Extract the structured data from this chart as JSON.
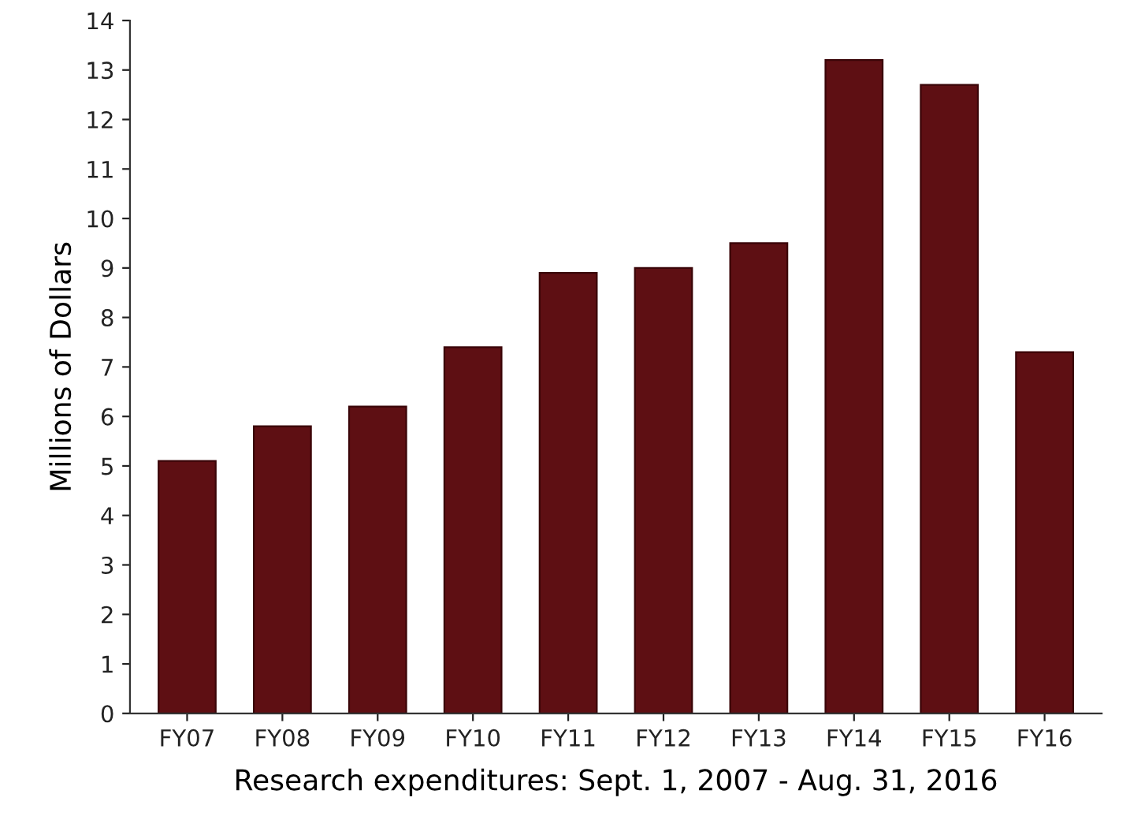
{
  "chart_data": {
    "type": "bar",
    "ylabel": "Millions of Dollars",
    "xlabel": "Research expenditures: Sept. 1, 2007 - Aug. 31, 2016",
    "categories": [
      "FY07",
      "FY08",
      "FY09",
      "FY10",
      "FY11",
      "FY12",
      "FY13",
      "FY14",
      "FY15",
      "FY16"
    ],
    "values": [
      5.1,
      5.8,
      6.2,
      7.4,
      8.9,
      9.0,
      9.5,
      13.2,
      12.7,
      7.3
    ],
    "color": "#5e0f13",
    "ylim": [
      0,
      14
    ],
    "yticks": [
      0,
      1,
      2,
      3,
      4,
      5,
      6,
      7,
      8,
      9,
      10,
      11,
      12,
      13,
      14
    ],
    "grid": false
  }
}
